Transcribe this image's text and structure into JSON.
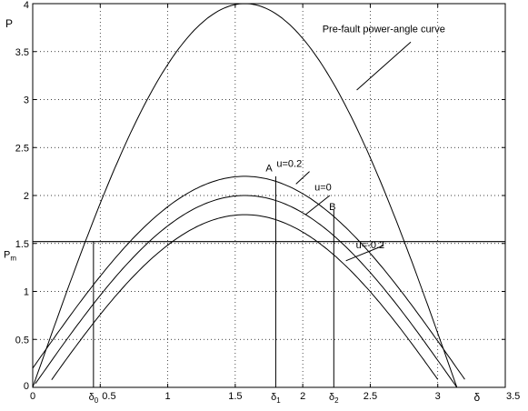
{
  "chart_data": {
    "type": "line",
    "title": "",
    "xlabel": "δ",
    "ylabel": "P",
    "xlim": [
      0,
      3.5
    ],
    "ylim": [
      0,
      4
    ],
    "grid": true,
    "x_ticks": [
      "0",
      "0.5",
      "1",
      "1.5",
      "2",
      "2.5",
      "3",
      "3.5"
    ],
    "y_ticks": [
      "0",
      "0.5",
      "1",
      "1.5",
      "2",
      "2.5",
      "3",
      "3.5",
      "4"
    ],
    "series": [
      {
        "key": "prefault",
        "amplitude": 4.0,
        "offset": 0.0,
        "x_range": [
          0,
          3.1416
        ]
      },
      {
        "key": "u_plus",
        "amplitude": 2.0,
        "offset": 0.2,
        "x_range": [
          0,
          3.2
        ]
      },
      {
        "key": "u_zero",
        "amplitude": 2.0,
        "offset": 0.0,
        "x_range": [
          0.02,
          3.14
        ]
      },
      {
        "key": "u_minus",
        "amplitude": 2.0,
        "offset": -0.2,
        "x_range": [
          0.14,
          3.0
        ]
      }
    ],
    "pm_line": {
      "label": "Pm",
      "label_main": "P",
      "label_sub": "m",
      "y": 1.52
    },
    "vertical_lines": [
      {
        "key": "delta0",
        "x": 0.45,
        "y_top": 1.52
      },
      {
        "key": "delta1",
        "x": 1.8,
        "y_top": 2.2
      },
      {
        "key": "delta2",
        "x": 2.23,
        "y_top": 1.85
      }
    ],
    "delta_labels": [
      {
        "key": "d0",
        "main": "δ",
        "sub": "0",
        "x": 0.45
      },
      {
        "key": "d1",
        "main": "δ",
        "sub": "1",
        "x": 1.8
      },
      {
        "key": "d2",
        "main": "δ",
        "sub": "2",
        "x": 2.23
      }
    ],
    "point_labels": [
      {
        "key": "A",
        "text": "A",
        "x": 1.75,
        "y": 2.25
      },
      {
        "key": "B",
        "text": "B",
        "x": 2.22,
        "y": 1.85
      }
    ],
    "annotations": [
      {
        "key": "prefault",
        "text": "Pre-fault power-angle curve",
        "text_x": 2.6,
        "text_y": 3.7,
        "line_from": [
          2.8,
          3.6
        ],
        "line_to": [
          2.4,
          3.1
        ]
      },
      {
        "key": "u_plus",
        "text": "u=0.2",
        "text_x": 1.9,
        "text_y": 2.3,
        "line_from": [
          2.05,
          2.25
        ],
        "line_to": [
          1.95,
          2.12
        ]
      },
      {
        "key": "u_zero",
        "text": "u=0",
        "text_x": 2.15,
        "text_y": 2.05,
        "line_from": [
          2.2,
          2.0
        ],
        "line_to": [
          2.02,
          1.8
        ]
      },
      {
        "key": "u_minus",
        "text": "u=-0.2",
        "text_x": 2.5,
        "text_y": 1.45,
        "line_from": [
          2.6,
          1.48
        ],
        "line_to": [
          2.32,
          1.32
        ]
      }
    ]
  }
}
